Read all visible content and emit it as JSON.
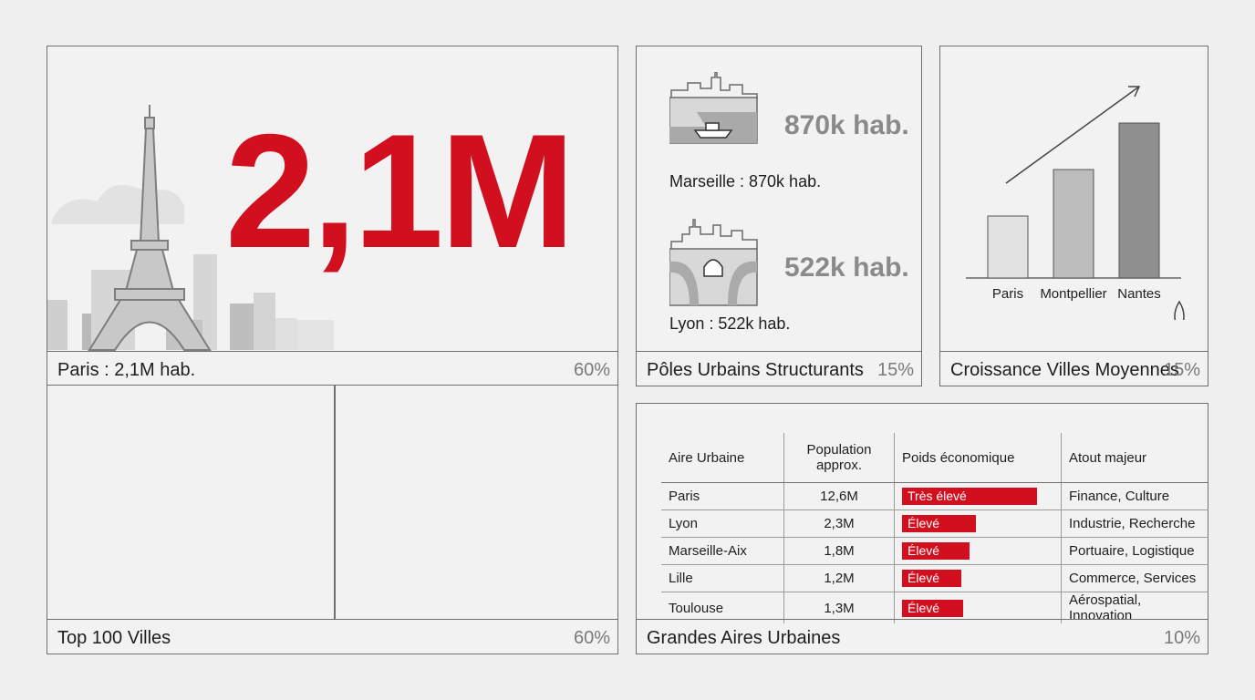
{
  "paris_panel": {
    "big_number": "2,1M",
    "title": "Paris : 2,1M hab.",
    "pct": "60%"
  },
  "top100_panel": {
    "title": "Top 100 Villes",
    "pct": "60%"
  },
  "poles_panel": {
    "title": "Pôles Urbains Structurants",
    "pct": "15%",
    "cities": [
      {
        "value": "870k hab.",
        "label": "Marseille : 870k hab.",
        "icon": "marseille-harbor-icon"
      },
      {
        "value": "522k hab.",
        "label": "Lyon : 522k hab.",
        "icon": "lyon-bridge-icon"
      }
    ]
  },
  "growth_panel": {
    "title": "Croissance Villes Moyennes",
    "pct": "15%",
    "chart_data": {
      "type": "bar",
      "categories": [
        "Paris",
        "Montpellier",
        "Nantes"
      ],
      "values": [
        1,
        1.75,
        2.5
      ],
      "title": "",
      "xlabel": "",
      "ylabel": "",
      "grid": false
    }
  },
  "table_panel": {
    "title": "Grandes Aires Urbaines",
    "pct": "10%",
    "headers": [
      "Aire Urbaine",
      "Population approx.",
      "Poids économique",
      "Atout majeur"
    ],
    "rows": [
      {
        "aire": "Paris",
        "pop": "12,6M",
        "poids": "Très élevé",
        "poids_level": 1.0,
        "atout": "Finance, Culture"
      },
      {
        "aire": "Lyon",
        "pop": "2,3M",
        "poids": "Élevé",
        "poids_level": 0.55,
        "atout": "Industrie, Recherche"
      },
      {
        "aire": "Marseille-Aix",
        "pop": "1,8M",
        "poids": "Élevé",
        "poids_level": 0.5,
        "atout": "Portuaire, Logistique"
      },
      {
        "aire": "Lille",
        "pop": "1,2M",
        "poids": "Élevé",
        "poids_level": 0.44,
        "atout": "Commerce, Services"
      },
      {
        "aire": "Toulouse",
        "pop": "1,3M",
        "poids": "Élevé",
        "poids_level": 0.45,
        "atout": "Aérospatial, Innovation"
      }
    ]
  },
  "colors": {
    "accent": "#d10f1e",
    "border": "#6f6f6f",
    "background": "#f0f0f0"
  }
}
